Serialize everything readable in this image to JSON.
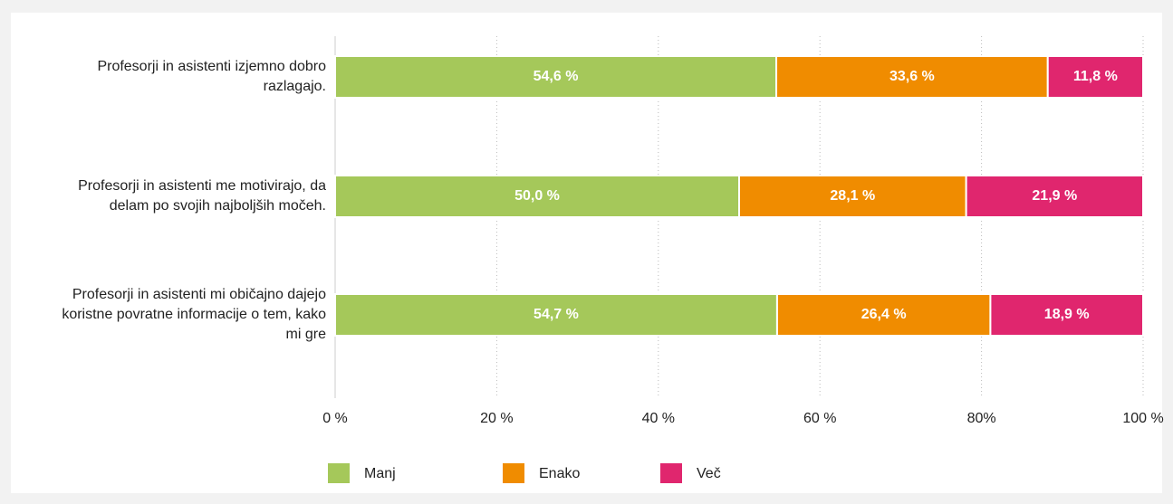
{
  "chart_data": {
    "type": "stacked_barh",
    "categories": [
      "Profesorji in asistenti izjemno dobro razlagajo.",
      "Profesorji in asistenti me motivirajo, da delam po svojih najboljših močeh.",
      "Profesorji in asistenti mi običajno dajejo koristne povratne informacije o tem, kako mi gre"
    ],
    "series": [
      {
        "name": "Manj",
        "color": "#a5c85a",
        "values": [
          54.6,
          50.0,
          54.7
        ],
        "value_labels": [
          "54,6 %",
          "50,0 %",
          "54,7 %"
        ]
      },
      {
        "name": "Enako",
        "color": "#f08c00",
        "values": [
          33.6,
          28.1,
          26.4
        ],
        "value_labels": [
          "33,6 %",
          "28,1 %",
          "26,4 %"
        ]
      },
      {
        "name": "Več",
        "color": "#e0266e",
        "values": [
          11.8,
          21.9,
          18.9
        ],
        "value_labels": [
          "11,8 %",
          "21,9 %",
          "18,9 %"
        ]
      }
    ],
    "xlim": [
      0,
      100
    ],
    "xticks": [
      {
        "value": 0,
        "label": "0 %"
      },
      {
        "value": 20,
        "label": "20 %"
      },
      {
        "value": 40,
        "label": "40 %"
      },
      {
        "value": 60,
        "label": "60 %"
      },
      {
        "value": 80,
        "label": "80%"
      },
      {
        "value": 100,
        "label": "100 %"
      }
    ],
    "grid": true,
    "legend": "bottom"
  }
}
